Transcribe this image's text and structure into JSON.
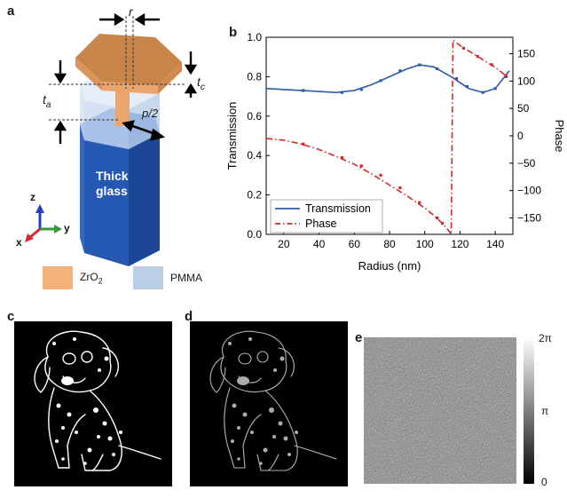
{
  "panels": {
    "a": {
      "letter": "a",
      "labels": {
        "r": "r",
        "tc": "t",
        "tc_sub": "c",
        "ta": "t",
        "ta_sub": "a",
        "p2": "p/2",
        "glass_line1": "Thick",
        "glass_line2": "glass",
        "axis_x": "x",
        "axis_y": "y",
        "axis_z": "z"
      },
      "legend": [
        {
          "label_main": "ZrO",
          "label_sub": "2",
          "color": "#f2b27a"
        },
        {
          "label_main": "PMMA",
          "label_sub": "",
          "color": "#b9cfe6"
        }
      ],
      "colors": {
        "pillar": "#e9a56b",
        "glass": "#2a5fb7",
        "pmma": "#c7d8ee"
      }
    },
    "b": {
      "letter": "b"
    },
    "c": {
      "letter": "c"
    },
    "d": {
      "letter": "d"
    },
    "e": {
      "letter": "e",
      "colorbar_labels": {
        "top": "2π",
        "mid": "π",
        "bottom": "0"
      }
    }
  },
  "chart_data": {
    "type": "line",
    "xlabel": "Radius (nm)",
    "ylabel": "Transmission",
    "y2label": "Phase",
    "xlim": [
      10,
      150
    ],
    "ylim": [
      0,
      1.0
    ],
    "y2lim": [
      -180,
      180
    ],
    "xticks": [
      20,
      40,
      60,
      80,
      100,
      120,
      140
    ],
    "yticks": [
      0.0,
      0.2,
      0.4,
      0.6,
      0.8,
      1.0
    ],
    "y2ticks": [
      -150,
      -100,
      -50,
      0,
      50,
      100,
      150
    ],
    "legend_position": "bottom-left",
    "series": [
      {
        "name": "Transmission",
        "axis": "left",
        "color": "#2e5aa8",
        "style": "solid",
        "x": [
          10,
          20,
          30,
          40,
          50,
          60,
          70,
          80,
          90,
          97,
          105,
          115,
          125,
          133,
          140,
          148
        ],
        "y": [
          0.74,
          0.735,
          0.73,
          0.725,
          0.72,
          0.73,
          0.76,
          0.8,
          0.84,
          0.86,
          0.85,
          0.8,
          0.74,
          0.72,
          0.74,
          0.83
        ],
        "marker_x": [
          31,
          53,
          64,
          75,
          86,
          97,
          107,
          118,
          124,
          133,
          140,
          146
        ],
        "marker_y": [
          0.73,
          0.72,
          0.735,
          0.78,
          0.83,
          0.86,
          0.84,
          0.79,
          0.75,
          0.72,
          0.74,
          0.8
        ]
      },
      {
        "name": "Phase",
        "axis": "right",
        "color": "#d62728",
        "style": "dashdot",
        "x": [
          10,
          20,
          30,
          40,
          50,
          60,
          70,
          80,
          90,
          100,
          105,
          110,
          114,
          115,
          116,
          120,
          130,
          140,
          148
        ],
        "y": [
          -5,
          -8,
          -15,
          -25,
          -38,
          -52,
          -70,
          -90,
          -110,
          -132,
          -145,
          -160,
          -175,
          -180,
          175,
          165,
          145,
          125,
          105
        ],
        "marker_x": [
          31,
          53,
          64,
          75,
          86,
          97,
          107,
          110,
          122,
          130,
          138,
          146
        ],
        "marker_y": [
          -15,
          -40,
          -55,
          -72,
          -95,
          -122,
          -150,
          -160,
          160,
          145,
          130,
          110
        ]
      }
    ]
  }
}
